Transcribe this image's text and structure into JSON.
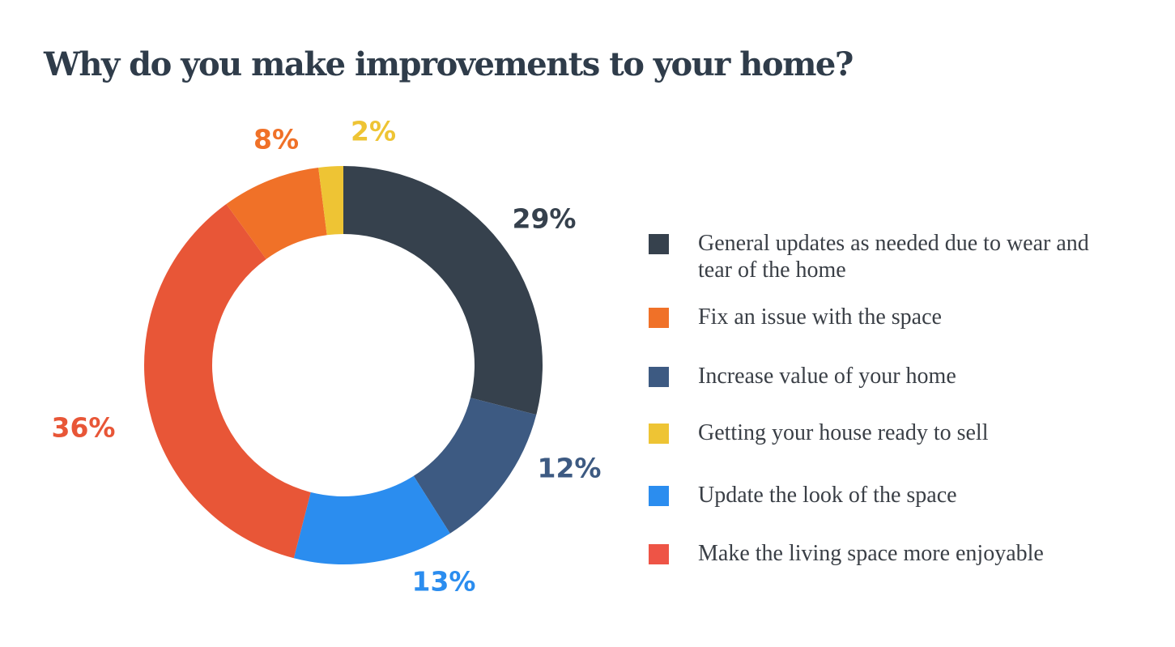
{
  "chart_data": {
    "type": "pie",
    "title": "Why do you make improvements to your home?",
    "slices": [
      {
        "label": "General updates as needed due to wear and tear of the home",
        "value": 29,
        "value_label": "29%",
        "color": "#36414d"
      },
      {
        "label": "Increase value of your home",
        "value": 12,
        "value_label": "12%",
        "color": "#3d5a82"
      },
      {
        "label": "Update the look of the space",
        "value": 13,
        "value_label": "13%",
        "color": "#2b8def"
      },
      {
        "label": "Make the living space more enjoyable",
        "value": 36,
        "value_label": "36%",
        "color": "#e85637"
      },
      {
        "label": "Fix an issue with the space",
        "value": 8,
        "value_label": "8%",
        "color": "#f07128"
      },
      {
        "label": "Getting your house ready to sell",
        "value": 2,
        "value_label": "2%",
        "color": "#eec434"
      }
    ],
    "legend": [
      {
        "label": "General updates as needed due to wear and tear of the home",
        "color": "#36414d"
      },
      {
        "label": "Fix an issue with the space",
        "color": "#f07128"
      },
      {
        "label": "Increase value of your home",
        "color": "#3d5a82"
      },
      {
        "label": "Getting your house ready to sell",
        "color": "#eec434"
      },
      {
        "label": "Update the look of the space",
        "color": "#2b8def"
      },
      {
        "label": "Make the living space more enjoyable",
        "color": "#ee5446"
      }
    ],
    "legend_position": "right",
    "donut": true,
    "start_angle": "top, clockwise"
  }
}
